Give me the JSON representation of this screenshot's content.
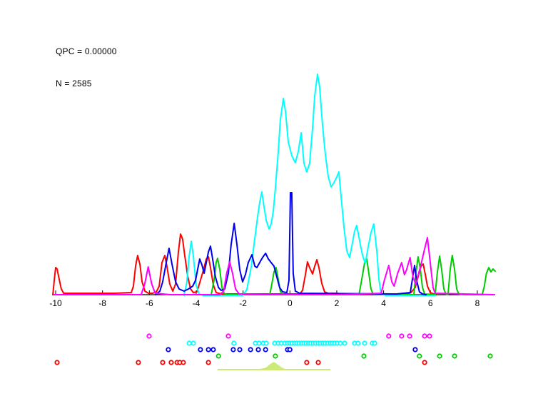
{
  "window": {
    "background": "#FFFFFF"
  },
  "annotations": {
    "qpc": "QPC = 0.00000",
    "n": "N = 2585"
  },
  "chart_data": {
    "type": "line",
    "title": "",
    "xlabel": "",
    "ylabel": "",
    "grid": false,
    "legend": "none",
    "x_axis": {
      "ticks": [
        -10,
        -8,
        -6,
        -4,
        -2,
        0,
        2,
        4,
        6,
        8
      ],
      "range": [
        -10.15,
        8.76
      ],
      "color": "#000000"
    },
    "y_axis": {
      "visible": false,
      "note": "no y-axis drawn; curve heights in arbitrary density units (px above baseline)"
    },
    "series": [
      {
        "name": "red",
        "color": "#FF0000",
        "points": [
          [
            -10.12,
            0
          ],
          [
            -10.06,
            20
          ],
          [
            -10.0,
            38
          ],
          [
            -9.94,
            36
          ],
          [
            -9.85,
            22
          ],
          [
            -9.76,
            8
          ],
          [
            -9.66,
            2
          ],
          [
            -8.7,
            2
          ],
          [
            -7.5,
            2
          ],
          [
            -6.77,
            3
          ],
          [
            -6.68,
            12
          ],
          [
            -6.59,
            40
          ],
          [
            -6.5,
            55
          ],
          [
            -6.4,
            42
          ],
          [
            -6.31,
            18
          ],
          [
            -6.19,
            5
          ],
          [
            -6.04,
            2
          ],
          [
            -5.86,
            2
          ],
          [
            -5.7,
            4
          ],
          [
            -5.58,
            12
          ],
          [
            -5.46,
            45
          ],
          [
            -5.34,
            55
          ],
          [
            -5.25,
            40
          ],
          [
            -5.13,
            15
          ],
          [
            -5.0,
            5
          ],
          [
            -4.88,
            15
          ],
          [
            -4.76,
            60
          ],
          [
            -4.67,
            85
          ],
          [
            -4.58,
            78
          ],
          [
            -4.49,
            55
          ],
          [
            -4.36,
            25
          ],
          [
            -4.24,
            8
          ],
          [
            -4.12,
            3
          ],
          [
            -3.97,
            4
          ],
          [
            -3.82,
            20
          ],
          [
            -3.69,
            35
          ],
          [
            -3.57,
            50
          ],
          [
            -3.48,
            53
          ],
          [
            -3.39,
            38
          ],
          [
            -3.27,
            14
          ],
          [
            -3.15,
            3
          ],
          [
            -2.93,
            1
          ],
          [
            0.42,
            1
          ],
          [
            0.54,
            6
          ],
          [
            0.66,
            28
          ],
          [
            0.75,
            46
          ],
          [
            0.84,
            38
          ],
          [
            0.97,
            29
          ],
          [
            1.06,
            40
          ],
          [
            1.15,
            49
          ],
          [
            1.24,
            38
          ],
          [
            1.36,
            16
          ],
          [
            1.48,
            4
          ],
          [
            1.64,
            2
          ],
          [
            2.0,
            2
          ],
          [
            2.18,
            1
          ],
          [
            4.99,
            1
          ],
          [
            5.17,
            3
          ],
          [
            5.35,
            10
          ],
          [
            5.47,
            25
          ],
          [
            5.6,
            40
          ],
          [
            5.69,
            43
          ],
          [
            5.78,
            28
          ],
          [
            5.87,
            12
          ],
          [
            5.99,
            3
          ],
          [
            6.14,
            1
          ],
          [
            6.26,
            0
          ]
        ]
      },
      {
        "name": "green",
        "color": "#00CC00",
        "points": [
          [
            -3.36,
            0
          ],
          [
            -3.24,
            20
          ],
          [
            -3.15,
            45
          ],
          [
            -3.09,
            51
          ],
          [
            -2.99,
            35
          ],
          [
            -2.9,
            10
          ],
          [
            -2.81,
            2
          ],
          [
            -2.69,
            0
          ],
          [
            -0.86,
            0
          ],
          [
            -0.77,
            15
          ],
          [
            -0.68,
            32
          ],
          [
            -0.59,
            38
          ],
          [
            -0.5,
            22
          ],
          [
            -0.41,
            5
          ],
          [
            -0.31,
            0
          ],
          [
            2.95,
            0
          ],
          [
            3.07,
            22
          ],
          [
            3.19,
            45
          ],
          [
            3.28,
            50
          ],
          [
            3.37,
            30
          ],
          [
            3.46,
            8
          ],
          [
            3.55,
            1
          ],
          [
            5.29,
            0
          ],
          [
            5.38,
            30
          ],
          [
            5.47,
            53
          ],
          [
            5.56,
            38
          ],
          [
            5.66,
            10
          ],
          [
            5.75,
            1
          ],
          [
            6.2,
            0
          ],
          [
            6.29,
            30
          ],
          [
            6.39,
            54
          ],
          [
            6.48,
            35
          ],
          [
            6.57,
            8
          ],
          [
            6.66,
            1
          ],
          [
            6.75,
            0
          ],
          [
            6.84,
            35
          ],
          [
            6.93,
            55
          ],
          [
            7.03,
            35
          ],
          [
            7.12,
            8
          ],
          [
            7.21,
            1
          ],
          [
            7.42,
            0
          ],
          [
            8.21,
            0
          ],
          [
            8.3,
            12
          ],
          [
            8.39,
            30
          ],
          [
            8.49,
            38
          ],
          [
            8.58,
            32
          ],
          [
            8.67,
            36
          ],
          [
            8.76,
            33
          ]
        ]
      },
      {
        "name": "cyan",
        "color": "#00FFFF",
        "points": [
          [
            -4.52,
            0
          ],
          [
            -4.4,
            18
          ],
          [
            -4.3,
            55
          ],
          [
            -4.21,
            76
          ],
          [
            -4.12,
            55
          ],
          [
            -4.0,
            14
          ],
          [
            -3.88,
            2
          ],
          [
            -3.69,
            0
          ],
          [
            -2.02,
            0
          ],
          [
            -1.84,
            8
          ],
          [
            -1.65,
            40
          ],
          [
            -1.5,
            80
          ],
          [
            -1.38,
            110
          ],
          [
            -1.29,
            130
          ],
          [
            -1.2,
            145
          ],
          [
            -1.11,
            125
          ],
          [
            -1.01,
            105
          ],
          [
            -0.89,
            93
          ],
          [
            -0.8,
            100
          ],
          [
            -0.71,
            118
          ],
          [
            -0.62,
            150
          ],
          [
            -0.5,
            200
          ],
          [
            -0.41,
            245
          ],
          [
            -0.28,
            276
          ],
          [
            -0.19,
            258
          ],
          [
            -0.07,
            215
          ],
          [
            0.08,
            196
          ],
          [
            0.23,
            186
          ],
          [
            0.36,
            202
          ],
          [
            0.48,
            228
          ],
          [
            0.6,
            185
          ],
          [
            0.72,
            173
          ],
          [
            0.84,
            185
          ],
          [
            0.97,
            235
          ],
          [
            1.06,
            280
          ],
          [
            1.18,
            310
          ],
          [
            1.27,
            292
          ],
          [
            1.39,
            240
          ],
          [
            1.51,
            198
          ],
          [
            1.64,
            166
          ],
          [
            1.76,
            152
          ],
          [
            1.88,
            158
          ],
          [
            2.0,
            166
          ],
          [
            2.09,
            173
          ],
          [
            2.18,
            140
          ],
          [
            2.31,
            95
          ],
          [
            2.43,
            62
          ],
          [
            2.55,
            53
          ],
          [
            2.67,
            74
          ],
          [
            2.76,
            90
          ],
          [
            2.85,
            98
          ],
          [
            2.98,
            76
          ],
          [
            3.1,
            56
          ],
          [
            3.22,
            45
          ],
          [
            3.34,
            68
          ],
          [
            3.46,
            88
          ],
          [
            3.58,
            100
          ],
          [
            3.71,
            62
          ],
          [
            3.8,
            22
          ],
          [
            3.89,
            3
          ],
          [
            4.07,
            0
          ],
          [
            6.2,
            0
          ]
        ]
      },
      {
        "name": "blue",
        "color": "#0000EE",
        "points": [
          [
            -5.74,
            0
          ],
          [
            -5.55,
            5
          ],
          [
            -5.43,
            18
          ],
          [
            -5.28,
            45
          ],
          [
            -5.16,
            65
          ],
          [
            -5.03,
            42
          ],
          [
            -4.88,
            18
          ],
          [
            -4.73,
            8
          ],
          [
            -4.52,
            5
          ],
          [
            -4.33,
            8
          ],
          [
            -4.15,
            12
          ],
          [
            -4.03,
            20
          ],
          [
            -3.94,
            35
          ],
          [
            -3.85,
            50
          ],
          [
            -3.76,
            42
          ],
          [
            -3.66,
            30
          ],
          [
            -3.57,
            45
          ],
          [
            -3.48,
            60
          ],
          [
            -3.39,
            68
          ],
          [
            -3.3,
            50
          ],
          [
            -3.18,
            25
          ],
          [
            -3.05,
            10
          ],
          [
            -2.93,
            6
          ],
          [
            -2.78,
            8
          ],
          [
            -2.63,
            30
          ],
          [
            -2.51,
            70
          ],
          [
            -2.38,
            100
          ],
          [
            -2.26,
            70
          ],
          [
            -2.14,
            35
          ],
          [
            -2.02,
            18
          ],
          [
            -1.9,
            28
          ],
          [
            -1.78,
            45
          ],
          [
            -1.62,
            56
          ],
          [
            -1.5,
            40
          ],
          [
            -1.41,
            38
          ],
          [
            -1.29,
            45
          ],
          [
            -1.17,
            52
          ],
          [
            -1.04,
            58
          ],
          [
            -0.92,
            50
          ],
          [
            -0.8,
            45
          ],
          [
            -0.68,
            40
          ],
          [
            -0.56,
            25
          ],
          [
            -0.44,
            10
          ],
          [
            -0.31,
            4
          ],
          [
            -0.13,
            3
          ],
          [
            -0.04,
            20
          ],
          [
            0.02,
            143
          ],
          [
            0.08,
            143
          ],
          [
            0.14,
            30
          ],
          [
            0.23,
            5
          ],
          [
            0.42,
            2
          ],
          [
            4.38,
            1
          ],
          [
            4.56,
            1
          ],
          [
            5.14,
            3
          ],
          [
            5.23,
            22
          ],
          [
            5.32,
            41
          ],
          [
            5.41,
            20
          ],
          [
            5.53,
            4
          ],
          [
            5.66,
            1
          ],
          [
            5.81,
            0
          ]
        ]
      },
      {
        "name": "magenta",
        "color": "#FF00FF",
        "points": [
          [
            -10.05,
            0
          ],
          [
            -6.35,
            0
          ],
          [
            -6.2,
            15
          ],
          [
            -6.05,
            39
          ],
          [
            -5.9,
            15
          ],
          [
            -5.75,
            2
          ],
          [
            -5.1,
            0
          ],
          [
            -3.0,
            0
          ],
          [
            -2.83,
            5
          ],
          [
            -2.7,
            30
          ],
          [
            -2.57,
            46
          ],
          [
            -2.45,
            30
          ],
          [
            -2.32,
            8
          ],
          [
            -2.17,
            1
          ],
          [
            -1.0,
            0
          ],
          [
            2.0,
            0
          ],
          [
            3.9,
            2
          ],
          [
            4.03,
            20
          ],
          [
            4.22,
            41
          ],
          [
            4.35,
            18
          ],
          [
            4.45,
            12
          ],
          [
            4.6,
            30
          ],
          [
            4.77,
            45
          ],
          [
            4.89,
            28
          ],
          [
            4.98,
            35
          ],
          [
            5.13,
            52
          ],
          [
            5.25,
            25
          ],
          [
            5.37,
            15
          ],
          [
            5.58,
            40
          ],
          [
            5.72,
            60
          ],
          [
            5.87,
            80
          ],
          [
            5.99,
            45
          ],
          [
            6.11,
            10
          ],
          [
            6.2,
            2
          ],
          [
            8.72,
            0
          ]
        ]
      }
    ],
    "rug_rows": [
      {
        "name": "magenta",
        "color": "#FF00FF",
        "row_y": 471,
        "x": [
          -6.01,
          -2.63,
          4.22,
          4.77,
          5.11,
          5.75,
          5.96
        ]
      },
      {
        "name": "cyan",
        "color": "#00FFFF",
        "row_y": 481,
        "x": [
          -4.3,
          -4.12,
          -2.39,
          -1.47,
          -1.32,
          -1.14,
          -1.01,
          -0.65,
          -0.5,
          -0.37,
          -0.22,
          -0.1,
          0.0,
          0.1,
          0.2,
          0.3,
          0.4,
          0.5,
          0.6,
          0.7,
          0.8,
          0.9,
          1.0,
          1.1,
          1.21,
          1.31,
          1.41,
          1.51,
          1.62,
          1.72,
          1.82,
          1.92,
          2.02,
          2.15,
          2.34,
          2.76,
          2.91,
          3.19,
          3.52,
          3.62
        ]
      },
      {
        "name": "blue",
        "color": "#0000EE",
        "row_y": 490,
        "x": [
          -5.19,
          -3.82,
          -3.48,
          -3.27,
          -2.42,
          -2.14,
          -1.68,
          -1.35,
          -1.04,
          -0.1,
          0.0,
          5.35
        ]
      },
      {
        "name": "green",
        "color": "#00CC00",
        "row_y": 499,
        "x": [
          -3.05,
          -0.62,
          3.16,
          5.53,
          6.39,
          7.03,
          8.55
        ]
      },
      {
        "name": "red",
        "color": "#FF0000",
        "row_y": 508,
        "x": [
          -9.94,
          -6.47,
          -5.43,
          -5.07,
          -4.82,
          -4.7,
          -4.55,
          -3.48,
          0.72,
          1.21,
          5.75
        ]
      }
    ],
    "projection_bump": {
      "color": "#CDE97A",
      "line_y": 518,
      "line_range": [
        -3.09,
        1.73
      ],
      "points": [
        [
          -1.35,
          0
        ],
        [
          -1.2,
          1
        ],
        [
          -1.05,
          2
        ],
        [
          -0.95,
          4
        ],
        [
          -0.85,
          7
        ],
        [
          -0.75,
          9
        ],
        [
          -0.7,
          10
        ],
        [
          -0.62,
          9
        ],
        [
          -0.5,
          6
        ],
        [
          -0.38,
          3
        ],
        [
          -0.26,
          1
        ],
        [
          -0.12,
          0
        ],
        [
          0.02,
          0
        ]
      ]
    }
  }
}
